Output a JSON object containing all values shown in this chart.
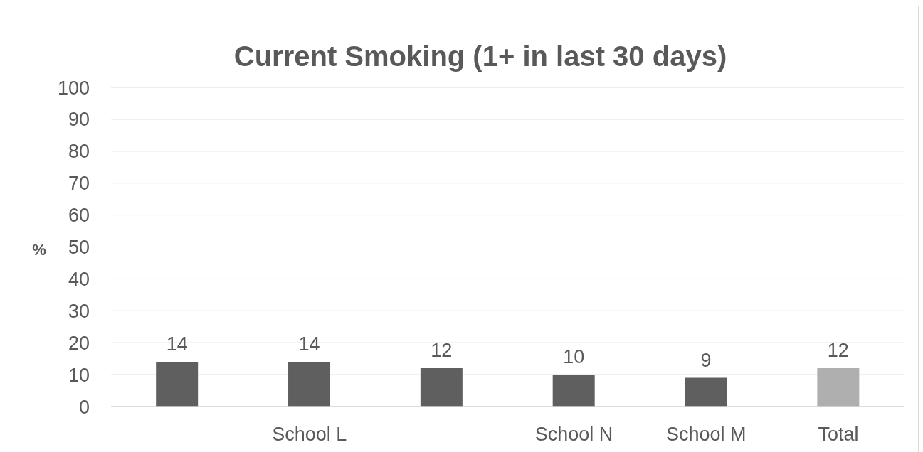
{
  "chart_data": {
    "type": "bar",
    "title": "Current Smoking (1+ in last 30 days)",
    "ylabel": "%",
    "categories": [
      null,
      "School L",
      null,
      "School N",
      "School M",
      "Total"
    ],
    "values": [
      14,
      14,
      12,
      10,
      9,
      12
    ],
    "colors": [
      "#5f5f5f",
      "#5f5f5f",
      "#5f5f5f",
      "#5f5f5f",
      "#5f5f5f",
      "#afafaf"
    ],
    "ylim": [
      0,
      100
    ],
    "yticks": [
      0,
      10,
      20,
      30,
      40,
      50,
      60,
      70,
      80,
      90,
      100
    ],
    "grid": "y",
    "data_labels": true
  }
}
